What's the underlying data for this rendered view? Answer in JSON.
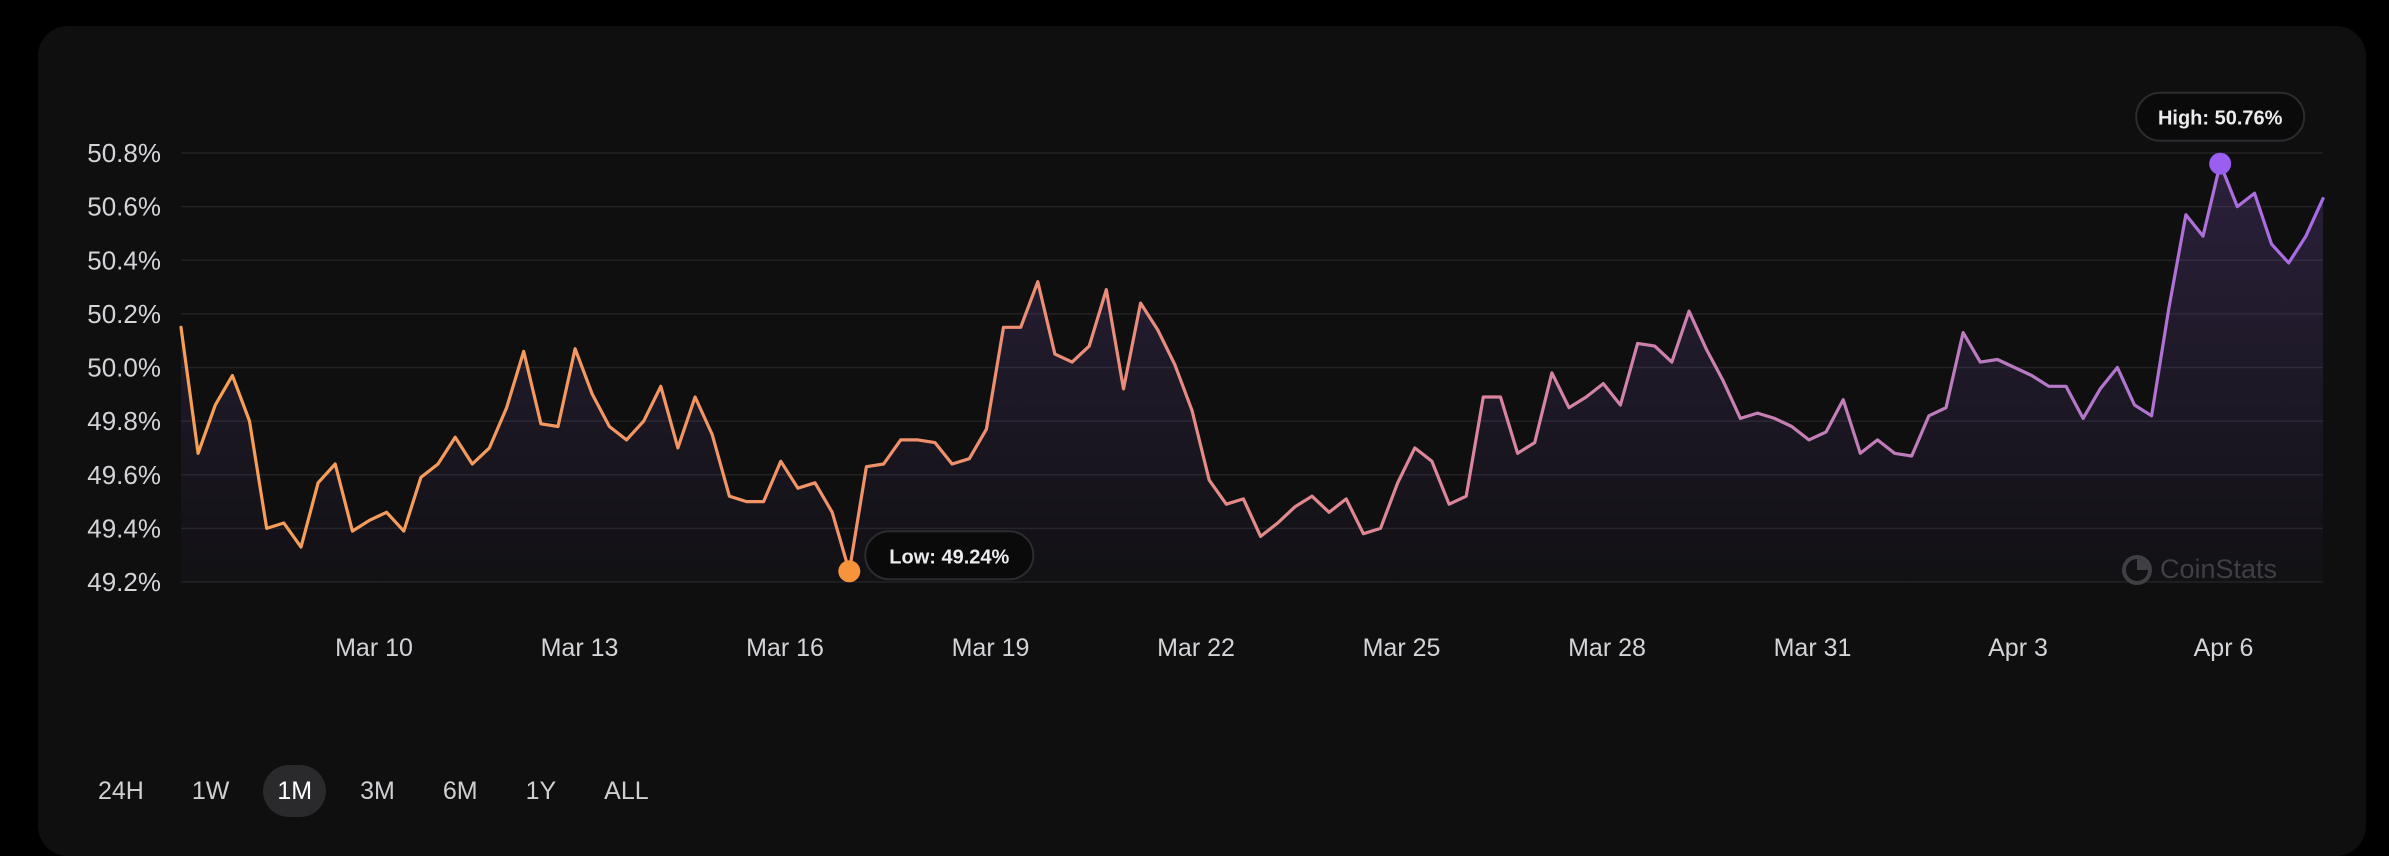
{
  "chart_data": {
    "type": "area",
    "x_labels": [
      "Mar 10",
      "Mar 13",
      "Mar 16",
      "Mar 19",
      "Mar 22",
      "Mar 25",
      "Mar 28",
      "Mar 31",
      "Apr 3",
      "Apr 6"
    ],
    "y_ticks": [
      "50.8%",
      "50.6%",
      "50.4%",
      "50.2%",
      "50.0%",
      "49.8%",
      "49.6%",
      "49.4%",
      "49.2%"
    ],
    "y_tick_values": [
      50.8,
      50.6,
      50.4,
      50.2,
      50.0,
      49.8,
      49.6,
      49.4,
      49.2
    ],
    "ylim": [
      49.2,
      50.8
    ],
    "grid": true,
    "series": [
      {
        "values": [
          50.15,
          49.68,
          49.86,
          49.97,
          49.8,
          49.4,
          49.42,
          49.33,
          49.57,
          49.64,
          49.39,
          49.43,
          49.46,
          49.39,
          49.59,
          49.64,
          49.74,
          49.64,
          49.7,
          49.85,
          50.06,
          49.79,
          49.78,
          50.07,
          49.9,
          49.78,
          49.73,
          49.8,
          49.93,
          49.7,
          49.89,
          49.75,
          49.52,
          49.5,
          49.5,
          49.65,
          49.55,
          49.57,
          49.46,
          49.24,
          49.63,
          49.64,
          49.73,
          49.73,
          49.72,
          49.64,
          49.66,
          49.77,
          50.15,
          50.15,
          50.32,
          50.05,
          50.02,
          50.08,
          50.29,
          49.92,
          50.24,
          50.14,
          50.01,
          49.84,
          49.58,
          49.49,
          49.51,
          49.37,
          49.42,
          49.48,
          49.52,
          49.46,
          49.51,
          49.38,
          49.4,
          49.57,
          49.7,
          49.65,
          49.49,
          49.52,
          49.89,
          49.89,
          49.68,
          49.72,
          49.98,
          49.85,
          49.89,
          49.94,
          49.86,
          50.09,
          50.08,
          50.02,
          50.21,
          50.07,
          49.95,
          49.81,
          49.83,
          49.81,
          49.78,
          49.73,
          49.76,
          49.88,
          49.68,
          49.73,
          49.68,
          49.67,
          49.82,
          49.85,
          50.13,
          50.02,
          50.03,
          50.0,
          49.97,
          49.93,
          49.93,
          49.81,
          49.92,
          50.0,
          49.86,
          49.82,
          50.22,
          50.57,
          50.49,
          50.76,
          50.6,
          50.65,
          50.46,
          50.39,
          50.49,
          50.63
        ]
      }
    ],
    "low": {
      "label": "Low: 49.24%",
      "value": 49.24,
      "index": 39
    },
    "high": {
      "label": "High: 50.76%",
      "value": 50.76,
      "index": 119
    },
    "colors": {
      "line_start": "#f7a054",
      "line_mid": "#c97ba8",
      "line_end": "#a86ae6",
      "low_dot": "#f7933a",
      "high_dot": "#9a5ef0",
      "grid": "#222225",
      "tick_text": "#d4d4d8",
      "tooltip_bg": "#0a0a0b"
    }
  },
  "range_selector": {
    "options": [
      "24H",
      "1W",
      "1M",
      "3M",
      "6M",
      "1Y",
      "ALL"
    ],
    "active": "1M"
  },
  "watermark": {
    "text": "CoinStats",
    "icon": "coinstats-logo-icon"
  }
}
